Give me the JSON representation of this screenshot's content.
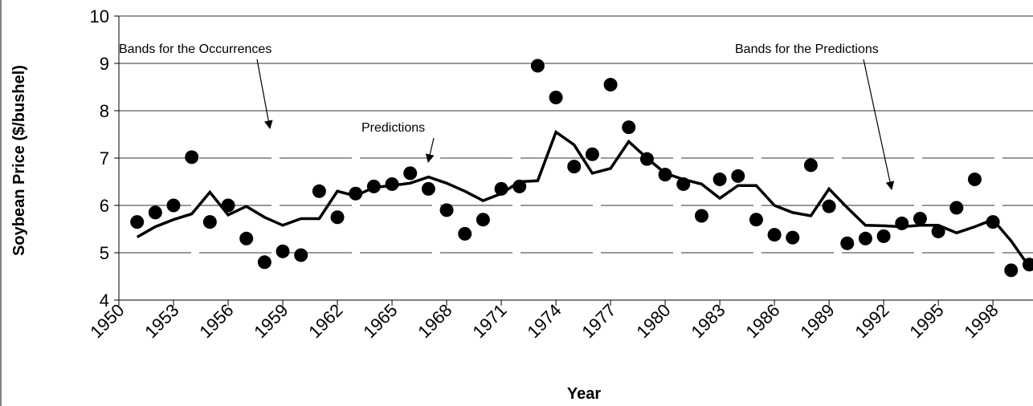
{
  "chart_data": {
    "type": "line",
    "x_label": "Year",
    "y_label": "Soybean Price ($/bushel)",
    "annotations": [
      "Bands for the Occurrences",
      "Predictions",
      "Bands for the Predictions"
    ],
    "x": [
      1951,
      1952,
      1953,
      1954,
      1955,
      1956,
      1957,
      1958,
      1959,
      1960,
      1961,
      1962,
      1963,
      1964,
      1965,
      1966,
      1967,
      1968,
      1969,
      1970,
      1971,
      1972,
      1973,
      1974,
      1975,
      1976,
      1977,
      1978,
      1979,
      1980,
      1981,
      1982,
      1983,
      1984,
      1985,
      1986,
      1987,
      1988,
      1989,
      1990,
      1991,
      1992,
      1993,
      1994,
      1995,
      1996,
      1997,
      1998,
      1999,
      2000
    ],
    "series": [
      {
        "name": "Predictions",
        "color": "#000000",
        "style": "line",
        "values": [
          5.33,
          5.55,
          5.7,
          5.82,
          6.28,
          5.8,
          5.98,
          5.75,
          5.58,
          5.72,
          5.72,
          6.3,
          6.2,
          6.38,
          6.42,
          6.47,
          6.6,
          6.47,
          6.3,
          6.1,
          6.25,
          6.5,
          6.52,
          7.55,
          7.28,
          6.68,
          6.78,
          7.35,
          7.0,
          6.68,
          6.55,
          6.45,
          6.15,
          6.42,
          6.42,
          6.0,
          5.85,
          5.78,
          6.35,
          5.95,
          5.58,
          5.57,
          5.55,
          5.58,
          5.58,
          5.42,
          5.55,
          5.7,
          5.25,
          4.7
        ]
      },
      {
        "name": "Occurrences",
        "color": "#000000",
        "style": "markers",
        "values": [
          5.65,
          5.85,
          6.0,
          7.02,
          5.65,
          6.0,
          5.3,
          4.8,
          5.03,
          4.95,
          6.3,
          5.75,
          6.25,
          6.4,
          6.45,
          6.68,
          6.35,
          5.9,
          5.4,
          5.7,
          6.35,
          6.4,
          8.95,
          8.28,
          6.82,
          7.08,
          8.55,
          7.65,
          6.98,
          6.65,
          6.45,
          5.78,
          6.55,
          6.62,
          5.7,
          5.38,
          5.32,
          6.85,
          5.98,
          5.2,
          5.3,
          5.35,
          5.62,
          5.72,
          5.45,
          5.95,
          6.55,
          5.65,
          4.63,
          4.75
        ]
      }
    ],
    "xlim": [
      1950,
      2000.2
    ],
    "xticks": [
      1950,
      1953,
      1956,
      1959,
      1962,
      1965,
      1968,
      1971,
      1974,
      1977,
      1980,
      1983,
      1986,
      1989,
      1992,
      1995,
      1998
    ],
    "ylim": [
      4,
      10
    ],
    "yticks": [
      4,
      5,
      6,
      7,
      8,
      9,
      10
    ],
    "grid": true,
    "legend": false
  }
}
